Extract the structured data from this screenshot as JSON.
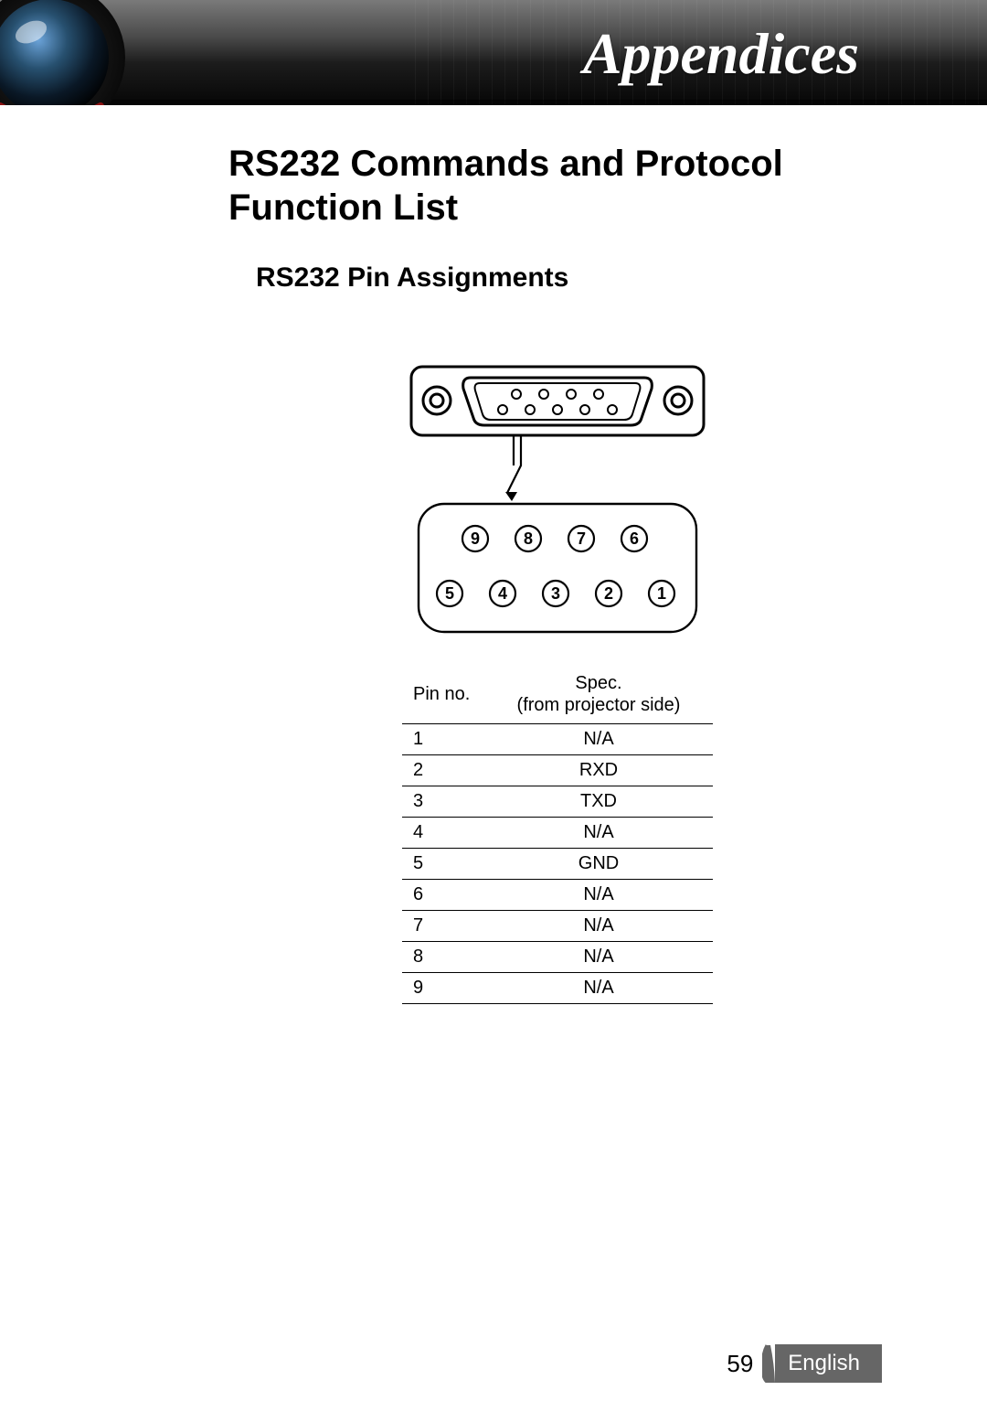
{
  "header": {
    "title": "Appendices",
    "colors": {
      "gradient_top": "#7a7a7a",
      "gradient_mid": "#1c1c1c",
      "gradient_bottom": "#060606",
      "title_color": "#ffffff"
    }
  },
  "page": {
    "h1": "RS232 Commands and Protocol Function List",
    "h2": "RS232 Pin Assignments"
  },
  "connector_diagram": {
    "type": "diagram",
    "pins_top_row": [
      "9",
      "8",
      "7",
      "6"
    ],
    "pins_bottom_row": [
      "5",
      "4",
      "3",
      "2",
      "1"
    ],
    "stroke_color": "#000000",
    "stroke_width": 3,
    "circle_ring_width": 2.2,
    "label_fontsize": 18,
    "top_holes_row1_count": 4,
    "top_holes_row2_count": 5,
    "background": "#ffffff"
  },
  "pin_table": {
    "type": "table",
    "columns": [
      "Pin no.",
      "Spec.\n(from projector side)"
    ],
    "rows": [
      [
        "1",
        "N/A"
      ],
      [
        "2",
        "RXD"
      ],
      [
        "3",
        "TXD"
      ],
      [
        "4",
        "N/A"
      ],
      [
        "5",
        "GND"
      ],
      [
        "6",
        "N/A"
      ],
      [
        "7",
        "N/A"
      ],
      [
        "8",
        "N/A"
      ],
      [
        "9",
        "N/A"
      ]
    ],
    "border_color": "#000000",
    "font_size": 20
  },
  "footer": {
    "page_number": "59",
    "language": "English",
    "lang_bg": "#666666",
    "lang_fg": "#ffffff"
  }
}
